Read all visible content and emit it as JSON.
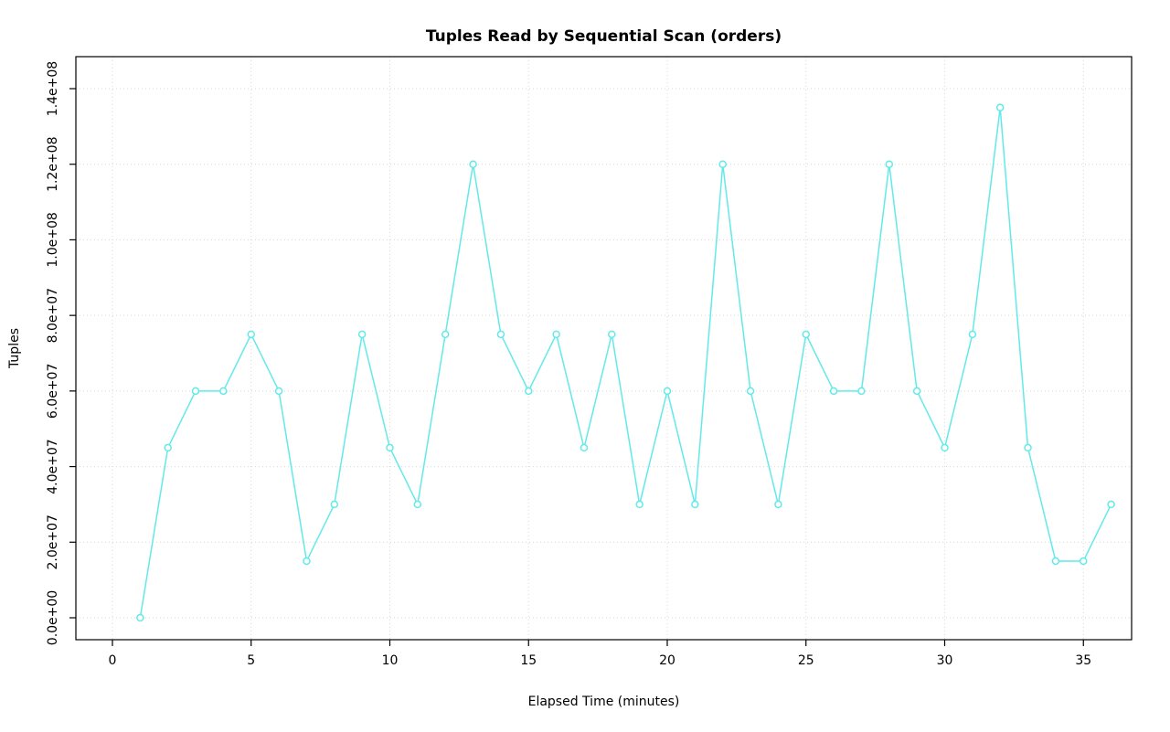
{
  "chart_data": {
    "type": "line",
    "title": "Tuples Read by Sequential Scan (orders)",
    "xlabel": "Elapsed Time (minutes)",
    "ylabel": "Tuples",
    "x": [
      1,
      2,
      3,
      4,
      5,
      6,
      7,
      8,
      9,
      10,
      11,
      12,
      13,
      14,
      15,
      16,
      17,
      18,
      19,
      20,
      21,
      22,
      23,
      24,
      25,
      26,
      27,
      28,
      29,
      30,
      31,
      32,
      33,
      34,
      35,
      36
    ],
    "y": [
      0,
      45000000,
      60000000,
      60000000,
      75000000,
      60000000,
      15000000,
      30000000,
      75000000,
      45000000,
      30000000,
      75000000,
      120000000,
      75000000,
      60000000,
      75000000,
      45000000,
      75000000,
      30000000,
      60000000,
      30000000,
      120000000,
      60000000,
      30000000,
      75000000,
      60000000,
      60000000,
      120000000,
      60000000,
      45000000,
      75000000,
      135000000,
      45000000,
      15000000,
      15000000,
      30000000
    ],
    "xlim": [
      -1.3,
      36.7
    ],
    "ylim": [
      0,
      140000000
    ],
    "x_ticks": [
      0,
      5,
      10,
      15,
      20,
      25,
      30,
      35
    ],
    "x_tick_labels": [
      "0",
      "5",
      "10",
      "15",
      "20",
      "25",
      "30",
      "35"
    ],
    "y_ticks": [
      0,
      20000000,
      40000000,
      60000000,
      80000000,
      100000000,
      120000000,
      140000000
    ],
    "y_tick_labels": [
      "0.0e+00",
      "2.0e+07",
      "4.0e+07",
      "6.0e+07",
      "8.0e+07",
      "1.0e+08",
      "1.2e+08",
      "1.4e+08"
    ],
    "grid": true,
    "legend": "none",
    "marker": "circle-open",
    "colors": {
      "line": "#63E9E9",
      "marker_stroke": "#63E9E9",
      "marker_fill": "#ffffff",
      "grid": "#d8d8d8",
      "axis": "#000000",
      "background": "#ffffff"
    }
  }
}
